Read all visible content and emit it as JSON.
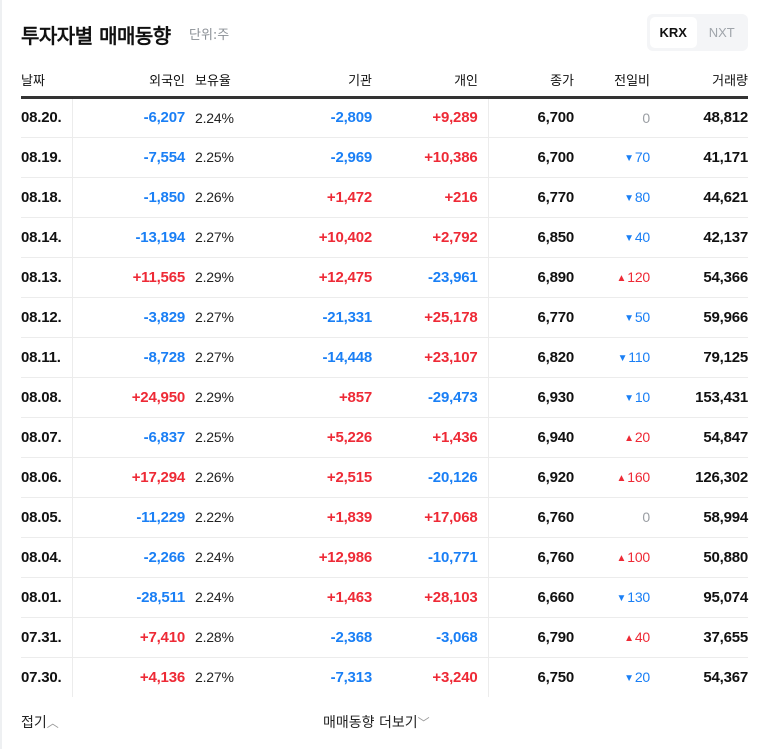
{
  "header": {
    "title": "투자자별 매매동향",
    "unit": "단위:주",
    "market_tabs": [
      {
        "label": "KRX",
        "active": true
      },
      {
        "label": "NXT",
        "active": false
      }
    ]
  },
  "table": {
    "columns": [
      "날짜",
      "외국인",
      "보유율",
      "기관",
      "개인",
      "종가",
      "전일비",
      "거래량"
    ],
    "rows": [
      {
        "date": "08.20.",
        "foreign": "-6,207",
        "ratio": "2.24%",
        "inst": "-2,809",
        "indiv": "+9,289",
        "close": "6,700",
        "chg_dir": "none",
        "chg": "0",
        "vol": "48,812"
      },
      {
        "date": "08.19.",
        "foreign": "-7,554",
        "ratio": "2.25%",
        "inst": "-2,969",
        "indiv": "+10,386",
        "close": "6,700",
        "chg_dir": "down",
        "chg": "70",
        "vol": "41,171"
      },
      {
        "date": "08.18.",
        "foreign": "-1,850",
        "ratio": "2.26%",
        "inst": "+1,472",
        "indiv": "+216",
        "close": "6,770",
        "chg_dir": "down",
        "chg": "80",
        "vol": "44,621"
      },
      {
        "date": "08.14.",
        "foreign": "-13,194",
        "ratio": "2.27%",
        "inst": "+10,402",
        "indiv": "+2,792",
        "close": "6,850",
        "chg_dir": "down",
        "chg": "40",
        "vol": "42,137"
      },
      {
        "date": "08.13.",
        "foreign": "+11,565",
        "ratio": "2.29%",
        "inst": "+12,475",
        "indiv": "-23,961",
        "close": "6,890",
        "chg_dir": "up",
        "chg": "120",
        "vol": "54,366"
      },
      {
        "date": "08.12.",
        "foreign": "-3,829",
        "ratio": "2.27%",
        "inst": "-21,331",
        "indiv": "+25,178",
        "close": "6,770",
        "chg_dir": "down",
        "chg": "50",
        "vol": "59,966"
      },
      {
        "date": "08.11.",
        "foreign": "-8,728",
        "ratio": "2.27%",
        "inst": "-14,448",
        "indiv": "+23,107",
        "close": "6,820",
        "chg_dir": "down",
        "chg": "110",
        "vol": "79,125"
      },
      {
        "date": "08.08.",
        "foreign": "+24,950",
        "ratio": "2.29%",
        "inst": "+857",
        "indiv": "-29,473",
        "close": "6,930",
        "chg_dir": "down",
        "chg": "10",
        "vol": "153,431"
      },
      {
        "date": "08.07.",
        "foreign": "-6,837",
        "ratio": "2.25%",
        "inst": "+5,226",
        "indiv": "+1,436",
        "close": "6,940",
        "chg_dir": "up",
        "chg": "20",
        "vol": "54,847"
      },
      {
        "date": "08.06.",
        "foreign": "+17,294",
        "ratio": "2.26%",
        "inst": "+2,515",
        "indiv": "-20,126",
        "close": "6,920",
        "chg_dir": "up",
        "chg": "160",
        "vol": "126,302"
      },
      {
        "date": "08.05.",
        "foreign": "-11,229",
        "ratio": "2.22%",
        "inst": "+1,839",
        "indiv": "+17,068",
        "close": "6,760",
        "chg_dir": "none",
        "chg": "0",
        "vol": "58,994"
      },
      {
        "date": "08.04.",
        "foreign": "-2,266",
        "ratio": "2.24%",
        "inst": "+12,986",
        "indiv": "-10,771",
        "close": "6,760",
        "chg_dir": "up",
        "chg": "100",
        "vol": "50,880"
      },
      {
        "date": "08.01.",
        "foreign": "-28,511",
        "ratio": "2.24%",
        "inst": "+1,463",
        "indiv": "+28,103",
        "close": "6,660",
        "chg_dir": "down",
        "chg": "130",
        "vol": "95,074"
      },
      {
        "date": "07.31.",
        "foreign": "+7,410",
        "ratio": "2.28%",
        "inst": "-2,368",
        "indiv": "-3,068",
        "close": "6,790",
        "chg_dir": "up",
        "chg": "40",
        "vol": "37,655"
      },
      {
        "date": "07.30.",
        "foreign": "+4,136",
        "ratio": "2.27%",
        "inst": "-7,313",
        "indiv": "+3,240",
        "close": "6,750",
        "chg_dir": "down",
        "chg": "20",
        "vol": "54,367"
      }
    ]
  },
  "footer": {
    "fold_label": "접기",
    "more_label": "매매동향 더보기"
  },
  "colors": {
    "up": "#ee2a36",
    "down": "#1a7ff5",
    "neutral": "#9a9ea3"
  },
  "icons": {
    "up": "▲",
    "down": "▼",
    "chevron_up": "︿",
    "chevron_down": "﹀"
  }
}
